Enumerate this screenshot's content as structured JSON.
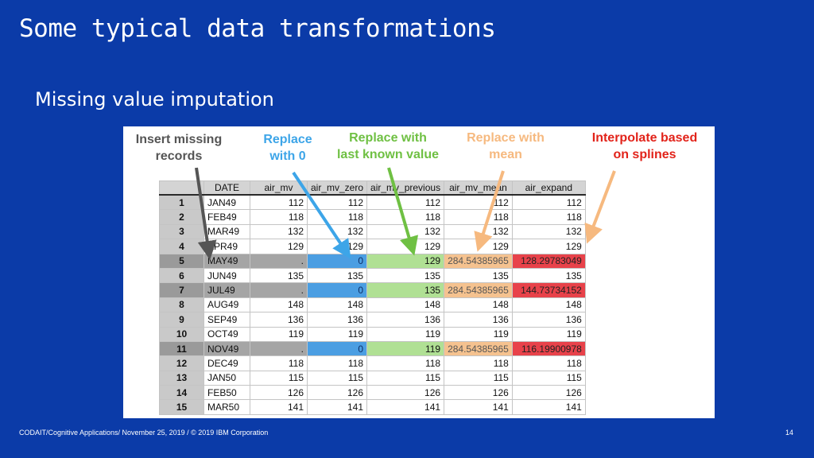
{
  "slide": {
    "title": "Some typical data transformations",
    "subtitle": "Missing value imputation",
    "footer": "CODAIT/Cognitive Applications/ November 25, 2019 / © 2019 IBM Corporation",
    "page_number": "14"
  },
  "annotations": {
    "insert": {
      "line1": "Insert missing",
      "line2": "records"
    },
    "zero": {
      "line1": "Replace",
      "line2": "with 0"
    },
    "previous": {
      "line1": "Replace with",
      "line2": "last known value"
    },
    "mean": {
      "line1": "Replace with",
      "line2": "mean"
    },
    "spline": {
      "line1": "Interpolate based",
      "line2": "on splines"
    }
  },
  "colors": {
    "background": "#0b3ba8",
    "insert": "#555555",
    "zero": "#3da5e8",
    "previous": "#6fc043",
    "mean": "#f6b97f",
    "spline": "#e2231a"
  },
  "table": {
    "headers": [
      "DATE",
      "air_mv",
      "air_mv_zero",
      "air_mv_previous",
      "air_mv_mean",
      "air_expand"
    ],
    "rows": [
      {
        "n": "1",
        "date": "JAN49",
        "cells": [
          "112",
          "112",
          "112",
          "112",
          "112"
        ],
        "missing": false
      },
      {
        "n": "2",
        "date": "FEB49",
        "cells": [
          "118",
          "118",
          "118",
          "118",
          "118"
        ],
        "missing": false
      },
      {
        "n": "3",
        "date": "MAR49",
        "cells": [
          "132",
          "132",
          "132",
          "132",
          "132"
        ],
        "missing": false
      },
      {
        "n": "4",
        "date": "APR49",
        "cells": [
          "129",
          "129",
          "129",
          "129",
          "129"
        ],
        "missing": false
      },
      {
        "n": "5",
        "date": "MAY49",
        "cells": [
          ".",
          "0",
          "129",
          "284.54385965",
          "128.29783049"
        ],
        "missing": true
      },
      {
        "n": "6",
        "date": "JUN49",
        "cells": [
          "135",
          "135",
          "135",
          "135",
          "135"
        ],
        "missing": false
      },
      {
        "n": "7",
        "date": "JUL49",
        "cells": [
          ".",
          "0",
          "135",
          "284.54385965",
          "144.73734152"
        ],
        "missing": true
      },
      {
        "n": "8",
        "date": "AUG49",
        "cells": [
          "148",
          "148",
          "148",
          "148",
          "148"
        ],
        "missing": false
      },
      {
        "n": "9",
        "date": "SEP49",
        "cells": [
          "136",
          "136",
          "136",
          "136",
          "136"
        ],
        "missing": false
      },
      {
        "n": "10",
        "date": "OCT49",
        "cells": [
          "119",
          "119",
          "119",
          "119",
          "119"
        ],
        "missing": false
      },
      {
        "n": "11",
        "date": "NOV49",
        "cells": [
          ".",
          "0",
          "119",
          "284.54385965",
          "116.19900978"
        ],
        "missing": true
      },
      {
        "n": "12",
        "date": "DEC49",
        "cells": [
          "118",
          "118",
          "118",
          "118",
          "118"
        ],
        "missing": false
      },
      {
        "n": "13",
        "date": "JAN50",
        "cells": [
          "115",
          "115",
          "115",
          "115",
          "115"
        ],
        "missing": false
      },
      {
        "n": "14",
        "date": "FEB50",
        "cells": [
          "126",
          "126",
          "126",
          "126",
          "126"
        ],
        "missing": false
      },
      {
        "n": "15",
        "date": "MAR50",
        "cells": [
          "141",
          "141",
          "141",
          "141",
          "141"
        ],
        "missing": false
      }
    ]
  }
}
